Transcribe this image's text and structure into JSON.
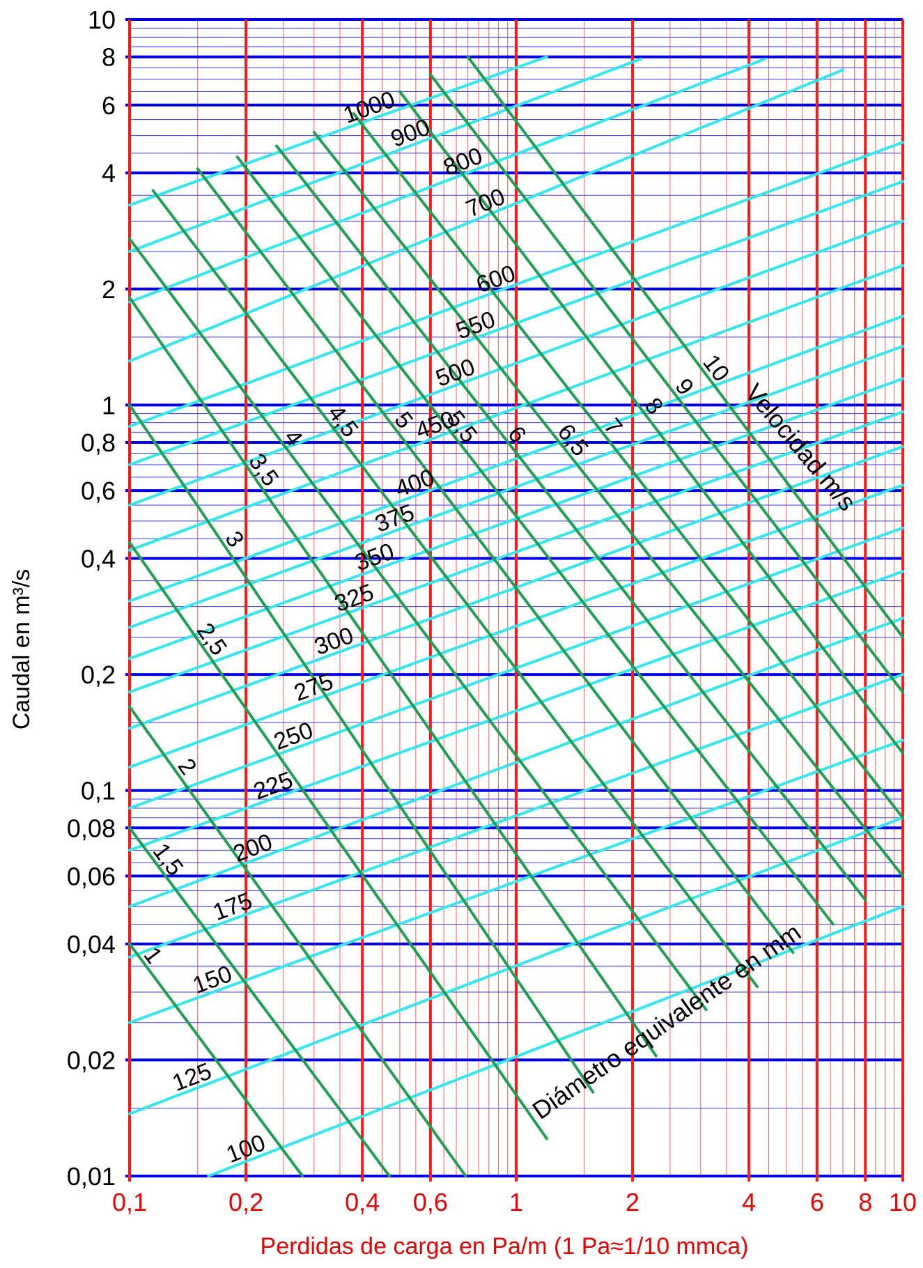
{
  "chart_data": {
    "type": "line",
    "scale": "log-log",
    "xlabel": "Perdidas de carga en Pa/m (1 Pa≈1/10 mmca)",
    "ylabel": "Caudal en m³/s",
    "xlim": [
      0.1,
      10
    ],
    "ylim": [
      0.01,
      10
    ],
    "x_ticks": [
      {
        "value": 0.1,
        "label": "0,1"
      },
      {
        "value": 0.2,
        "label": "0,2"
      },
      {
        "value": 0.4,
        "label": "0,4"
      },
      {
        "value": 0.6,
        "label": "0,6"
      },
      {
        "value": 1,
        "label": "1"
      },
      {
        "value": 2,
        "label": "2"
      },
      {
        "value": 4,
        "label": "4"
      },
      {
        "value": 6,
        "label": "6"
      },
      {
        "value": 8,
        "label": "8"
      },
      {
        "value": 10,
        "label": "10"
      }
    ],
    "y_ticks": [
      {
        "value": 0.01,
        "label": "0,01"
      },
      {
        "value": 0.02,
        "label": "0,02"
      },
      {
        "value": 0.04,
        "label": "0,04"
      },
      {
        "value": 0.06,
        "label": "0,06"
      },
      {
        "value": 0.08,
        "label": "0,08"
      },
      {
        "value": 0.1,
        "label": "0,1"
      },
      {
        "value": 0.2,
        "label": "0,2"
      },
      {
        "value": 0.4,
        "label": "0,4"
      },
      {
        "value": 0.6,
        "label": "0,6"
      },
      {
        "value": 0.8,
        "label": "0,8"
      },
      {
        "value": 1,
        "label": "1"
      },
      {
        "value": 2,
        "label": "2"
      },
      {
        "value": 4,
        "label": "4"
      },
      {
        "value": 6,
        "label": "6"
      },
      {
        "value": 8,
        "label": "8"
      },
      {
        "value": 10,
        "label": "10"
      }
    ],
    "diameter_series_title": "Diámetro equivalente en mm",
    "velocity_series_title": "Velocidad m/s",
    "diameter_series": [
      {
        "label": "100",
        "points": [
          [
            0.16,
            0.01
          ],
          [
            10,
            0.05
          ]
        ]
      },
      {
        "label": "125",
        "points": [
          [
            0.1,
            0.0145
          ],
          [
            10,
            0.085
          ]
        ]
      },
      {
        "label": "150",
        "points": [
          [
            0.1,
            0.025
          ],
          [
            10,
            0.135
          ]
        ]
      },
      {
        "label": "175",
        "points": [
          [
            0.1,
            0.037
          ],
          [
            10,
            0.2
          ]
        ]
      },
      {
        "label": "200",
        "points": [
          [
            0.1,
            0.05
          ],
          [
            10,
            0.28
          ]
        ]
      },
      {
        "label": "225",
        "points": [
          [
            0.1,
            0.07
          ],
          [
            10,
            0.37
          ]
        ]
      },
      {
        "label": "250",
        "points": [
          [
            0.1,
            0.09
          ],
          [
            10,
            0.48
          ]
        ]
      },
      {
        "label": "275",
        "points": [
          [
            0.1,
            0.115
          ],
          [
            10,
            0.62
          ]
        ]
      },
      {
        "label": "300",
        "points": [
          [
            0.1,
            0.145
          ],
          [
            10,
            0.78
          ]
        ]
      },
      {
        "label": "325",
        "points": [
          [
            0.1,
            0.18
          ],
          [
            10,
            0.96
          ]
        ]
      },
      {
        "label": "350",
        "points": [
          [
            0.1,
            0.22
          ],
          [
            10,
            1.17
          ]
        ]
      },
      {
        "label": "375",
        "points": [
          [
            0.1,
            0.265
          ],
          [
            10,
            1.42
          ]
        ]
      },
      {
        "label": "400",
        "points": [
          [
            0.1,
            0.31
          ],
          [
            10,
            1.7
          ]
        ]
      },
      {
        "label": "450",
        "points": [
          [
            0.1,
            0.42
          ],
          [
            10,
            2.3
          ]
        ]
      },
      {
        "label": "500",
        "points": [
          [
            0.1,
            0.55
          ],
          [
            10,
            3
          ]
        ]
      },
      {
        "label": "550",
        "points": [
          [
            0.1,
            0.7
          ],
          [
            10,
            3.8
          ]
        ]
      },
      {
        "label": "600",
        "points": [
          [
            0.1,
            0.88
          ],
          [
            10,
            4.8
          ]
        ]
      },
      {
        "label": "700",
        "points": [
          [
            0.1,
            1.3
          ],
          [
            7,
            7.4
          ]
        ]
      },
      {
        "label": "800",
        "points": [
          [
            0.1,
            1.85
          ],
          [
            4.4,
            7.9
          ]
        ]
      },
      {
        "label": "900",
        "points": [
          [
            0.1,
            2.5
          ],
          [
            2.1,
            7.9
          ]
        ]
      },
      {
        "label": "1000",
        "points": [
          [
            0.1,
            3.3
          ],
          [
            1.2,
            8
          ]
        ]
      }
    ],
    "velocity_series": [
      {
        "label": "1",
        "points": [
          [
            0.1,
            0.04
          ],
          [
            0.28,
            0.01
          ]
        ]
      },
      {
        "label": "1,5",
        "points": [
          [
            0.1,
            0.08
          ],
          [
            0.47,
            0.01
          ]
        ]
      },
      {
        "label": "2",
        "points": [
          [
            0.1,
            0.165
          ],
          [
            0.74,
            0.01
          ]
        ]
      },
      {
        "label": "2,5",
        "points": [
          [
            0.1,
            0.44
          ],
          [
            1.2,
            0.0125
          ]
        ]
      },
      {
        "label": "3",
        "points": [
          [
            0.1,
            1
          ],
          [
            1.58,
            0.0165
          ]
        ]
      },
      {
        "label": "3,5",
        "points": [
          [
            0.1,
            1.9
          ],
          [
            2.3,
            0.0205
          ]
        ]
      },
      {
        "label": "4",
        "points": [
          [
            0.1,
            2.7
          ],
          [
            3.1,
            0.027
          ]
        ]
      },
      {
        "label": "4,5",
        "points": [
          [
            0.115,
            3.6
          ],
          [
            4.2,
            0.031
          ]
        ]
      },
      {
        "label": "5",
        "points": [
          [
            0.15,
            4.1
          ],
          [
            5.2,
            0.038
          ]
        ]
      },
      {
        "label": "5,5",
        "points": [
          [
            0.19,
            4.4
          ],
          [
            6.6,
            0.045
          ]
        ]
      },
      {
        "label": "6",
        "points": [
          [
            0.24,
            4.7
          ],
          [
            8,
            0.052
          ]
        ]
      },
      {
        "label": "6,5",
        "points": [
          [
            0.3,
            5.1
          ],
          [
            10,
            0.06
          ]
        ]
      },
      {
        "label": "7",
        "points": [
          [
            0.38,
            5.7
          ],
          [
            10,
            0.085
          ]
        ]
      },
      {
        "label": "8",
        "points": [
          [
            0.5,
            6.5
          ],
          [
            10,
            0.125
          ]
        ]
      },
      {
        "label": "9",
        "points": [
          [
            0.6,
            7.2
          ],
          [
            10,
            0.18
          ]
        ]
      },
      {
        "label": "10",
        "points": [
          [
            0.75,
            8
          ],
          [
            10,
            0.25
          ]
        ]
      }
    ],
    "colors": {
      "major_vertical": "#ff1a1a",
      "minor_vertical": "#ff5a5a",
      "major_horizontal": "#0000e6",
      "minor_horizontal": "#3a3aff",
      "diameter_lines": "#33e6f0",
      "velocity_lines": "#1f9e54",
      "x_labels": "#e60000",
      "y_labels": "#000000"
    },
    "grid": true
  }
}
